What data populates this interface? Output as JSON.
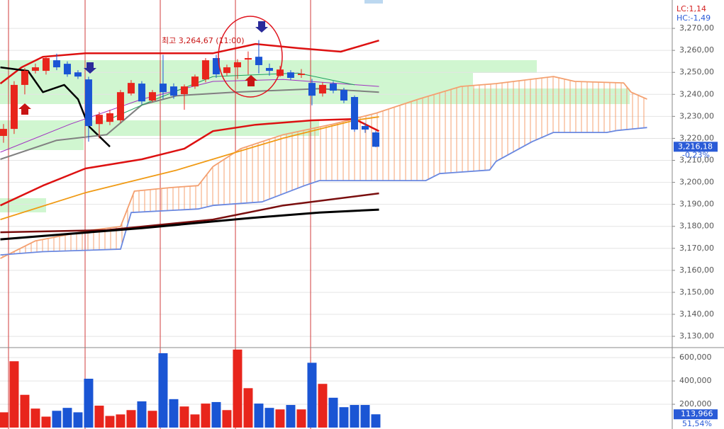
{
  "chart_data": [
    {
      "type": "candlestick",
      "annotation": "최고 3,264,67 (11:00)",
      "indicators": [
        {
          "label": "LC:1,14",
          "color": "#d42020"
        },
        {
          "label": "HC:-1,49",
          "color": "#2a5bd7"
        }
      ],
      "last_price": {
        "value": 3216.18,
        "label": "3,216,18"
      },
      "change": {
        "value": -0.23,
        "label": "-0,23%"
      },
      "xlim": [
        -0.33,
        62.87
      ],
      "ylim": [
        3125.2,
        3282.9
      ],
      "yticks": [
        {
          "value": 3270,
          "label": "3,270,00"
        },
        {
          "value": 3260,
          "label": "3,260,00"
        },
        {
          "value": 3250,
          "label": "3,250,00"
        },
        {
          "value": 3240,
          "label": "3,240,00"
        },
        {
          "value": 3230,
          "label": "3,230,00"
        },
        {
          "value": 3220,
          "label": "3,220,00"
        },
        {
          "value": 3210,
          "label": "3,210,00"
        },
        {
          "value": 3200,
          "label": "3,200,00"
        },
        {
          "value": 3190,
          "label": "3,190,00"
        },
        {
          "value": 3180,
          "label": "3,180,00"
        },
        {
          "value": 3170,
          "label": "3,170,00"
        },
        {
          "value": 3160,
          "label": "3,160,00"
        },
        {
          "value": 3150,
          "label": "3,150,00"
        },
        {
          "value": 3140,
          "label": "3,140,00"
        },
        {
          "value": 3130,
          "label": "3,130,00"
        }
      ],
      "grid": true,
      "up_color": "#e8251c",
      "down_color": "#1a55d4",
      "candles": {
        "open": [
          3221.1,
          3224.3,
          3244.3,
          3250.7,
          3250.7,
          3255.5,
          3253.9,
          3250.0,
          3246.8,
          3226.5,
          3227.5,
          3228.2,
          3240.4,
          3244.9,
          3237.2,
          3244.9,
          3243.6,
          3240.1,
          3243.6,
          3246.8,
          3256.5,
          3249.7,
          3252.3,
          3255.8,
          3257.1,
          3252.0,
          3248.4,
          3250.0,
          3248.8,
          3245.2,
          3240.4,
          3244.9,
          3242.0,
          3238.8,
          3225.6,
          3222.7
        ],
        "high": [
          3226.5,
          3246.0,
          3252.0,
          3254.0,
          3257.5,
          3258.5,
          3255.0,
          3251.0,
          3248.0,
          3232.0,
          3233.0,
          3242.0,
          3246.5,
          3246.0,
          3242.0,
          3258.0,
          3245.0,
          3244.5,
          3249.0,
          3256.5,
          3258.0,
          3253.5,
          3256.0,
          3259.5,
          3264.67,
          3254.0,
          3253.0,
          3251.0,
          3251.5,
          3247.0,
          3245.5,
          3246.0,
          3243.0,
          3239.5,
          3227.0,
          3223.5
        ],
        "low": [
          3218.0,
          3222.0,
          3240.0,
          3249.5,
          3249.0,
          3251.0,
          3248.0,
          3247.0,
          3218.5,
          3220.0,
          3226.0,
          3227.0,
          3239.5,
          3235.5,
          3236.5,
          3238.0,
          3238.0,
          3233.0,
          3242.5,
          3245.5,
          3247.5,
          3248.5,
          3247.0,
          3249.0,
          3249.5,
          3248.5,
          3248.0,
          3246.5,
          3247.5,
          3235.0,
          3239.0,
          3240.5,
          3236.0,
          3223.0,
          3222.5,
          3216.0
        ],
        "close": [
          3224.3,
          3244.3,
          3250.7,
          3252.3,
          3256.5,
          3252.3,
          3249.1,
          3248.1,
          3225.6,
          3230.7,
          3231.4,
          3241.0,
          3245.2,
          3236.8,
          3241.0,
          3241.0,
          3239.4,
          3243.6,
          3248.1,
          3255.5,
          3249.1,
          3252.3,
          3254.6,
          3256.5,
          3253.3,
          3250.7,
          3251.3,
          3247.5,
          3249.4,
          3239.4,
          3244.3,
          3241.7,
          3237.2,
          3224.0,
          3224.0,
          3216.18
        ]
      },
      "lines": [
        {
          "color": "#dd1111",
          "width": 2.5,
          "x": [
            -0.3,
            1.7,
            3.7,
            7.7,
            19.7,
            23.7,
            27.7,
            31.7,
            35.3
          ],
          "values": [
            3244.9,
            3252.3,
            3257.1,
            3258.7,
            3258.7,
            3262.9,
            3261.0,
            3259.4,
            3264.5
          ]
        },
        {
          "color": "#dd1111",
          "width": 2.5,
          "x": [
            -0.3,
            3.7,
            7.7,
            13,
            17,
            19.7,
            23.7,
            29,
            33,
            35.3
          ],
          "values": [
            3189.5,
            3198.5,
            3206.3,
            3210.5,
            3215.3,
            3223.3,
            3226.2,
            3228.2,
            3228.8,
            3223.3
          ]
        },
        {
          "color": "#000000",
          "width": 2.5,
          "x": [
            -0.3,
            2.3,
            3.7,
            5.7,
            7,
            8,
            10
          ],
          "values": [
            3252.3,
            3250.7,
            3241.0,
            3244.3,
            3237.8,
            3225.6,
            3216.2
          ]
        },
        {
          "color": "#f09a14",
          "width": 1.8,
          "x": [
            -0.3,
            7.7,
            16.3,
            26.3,
            33,
            35.3
          ],
          "values": [
            3183.1,
            3195.3,
            3205.6,
            3220.1,
            3228.2,
            3229.8
          ]
        },
        {
          "color": "#7a0e0e",
          "width": 2.5,
          "x": [
            -0.3,
            9.7,
            19.7,
            26.3,
            35.3
          ],
          "values": [
            3177.3,
            3178.3,
            3183.1,
            3189.5,
            3195.0
          ]
        },
        {
          "color": "#000000",
          "width": 3,
          "x": [
            -0.3,
            13,
            23,
            29.7,
            35.3
          ],
          "values": [
            3174.1,
            3179.2,
            3183.7,
            3186.3,
            3187.6
          ]
        },
        {
          "color": "#808080",
          "width": 2,
          "x": [
            -0.3,
            5,
            9.7,
            13,
            16.3,
            21.7,
            29.7,
            35.3
          ],
          "values": [
            3210.5,
            3219.1,
            3221.7,
            3235.2,
            3239.4,
            3241.0,
            3242.6,
            3241.0
          ]
        },
        {
          "color": "#a030c0",
          "width": 1,
          "x": [
            -0.3,
            6.3,
            13,
            19.7,
            26.3,
            35.3
          ],
          "values": [
            3213.7,
            3226.5,
            3237.8,
            3245.9,
            3246.8,
            3243.6
          ]
        },
        {
          "color": "#20a060",
          "width": 1,
          "x": [
            9.7,
            14.3,
            19.7,
            27.7,
            33
          ],
          "values": [
            3228.2,
            3237.8,
            3248.1,
            3249.7,
            3244.3
          ]
        }
      ],
      "cloud": {
        "span_a": {
          "color": "#f4a070",
          "x": [
            -0.3,
            3,
            8.3,
            11,
            12.3,
            15.7,
            18.3,
            19.7,
            22.3,
            26.3,
            31,
            35,
            39,
            43,
            46.3,
            51.7,
            53.7,
            58.3,
            59,
            60.5
          ],
          "values": [
            3165.4,
            3173.4,
            3178.3,
            3179.9,
            3196.0,
            3197.6,
            3198.5,
            3207.2,
            3215.3,
            3221.7,
            3226.5,
            3231.4,
            3237.8,
            3243.6,
            3244.9,
            3248.1,
            3245.9,
            3245.2,
            3241.0,
            3237.8
          ]
        },
        "span_b": {
          "color": "#6a88e0",
          "x": [
            -0.3,
            3.7,
            11,
            12,
            18.3,
            19.7,
            24.3,
            28.3,
            29.7,
            39.7,
            41,
            45.7,
            46.3,
            49.7,
            51.7,
            56.7,
            57.7,
            60.5
          ],
          "values": [
            3167.0,
            3168.5,
            3169.6,
            3186.3,
            3187.9,
            3189.5,
            3191.1,
            3198.5,
            3200.8,
            3200.8,
            3204.0,
            3205.6,
            3209.5,
            3218.5,
            3222.7,
            3222.7,
            3223.6,
            3224.9
          ]
        }
      }
    },
    {
      "type": "bar",
      "xlim": [
        -0.33,
        62.87
      ],
      "ylim": [
        0,
        680000
      ],
      "yticks": [
        {
          "value": 600000,
          "label": "600,000"
        },
        {
          "value": 400000,
          "label": "400,000"
        },
        {
          "value": 200000,
          "label": "200,000"
        }
      ],
      "last_volume": {
        "value": 113966,
        "label": "113,966"
      },
      "ratio": {
        "value": 51.54,
        "label": "51,54%"
      },
      "values": [
        131000,
        569000,
        281000,
        163000,
        94000,
        144000,
        169000,
        131000,
        419000,
        188000,
        100000,
        113000,
        150000,
        225000,
        144000,
        638000,
        244000,
        181000,
        113000,
        206000,
        219000,
        150000,
        669000,
        338000,
        206000,
        169000,
        156000,
        194000,
        156000,
        556000,
        375000,
        256000,
        175000,
        194000,
        194000,
        113966
      ]
    }
  ]
}
